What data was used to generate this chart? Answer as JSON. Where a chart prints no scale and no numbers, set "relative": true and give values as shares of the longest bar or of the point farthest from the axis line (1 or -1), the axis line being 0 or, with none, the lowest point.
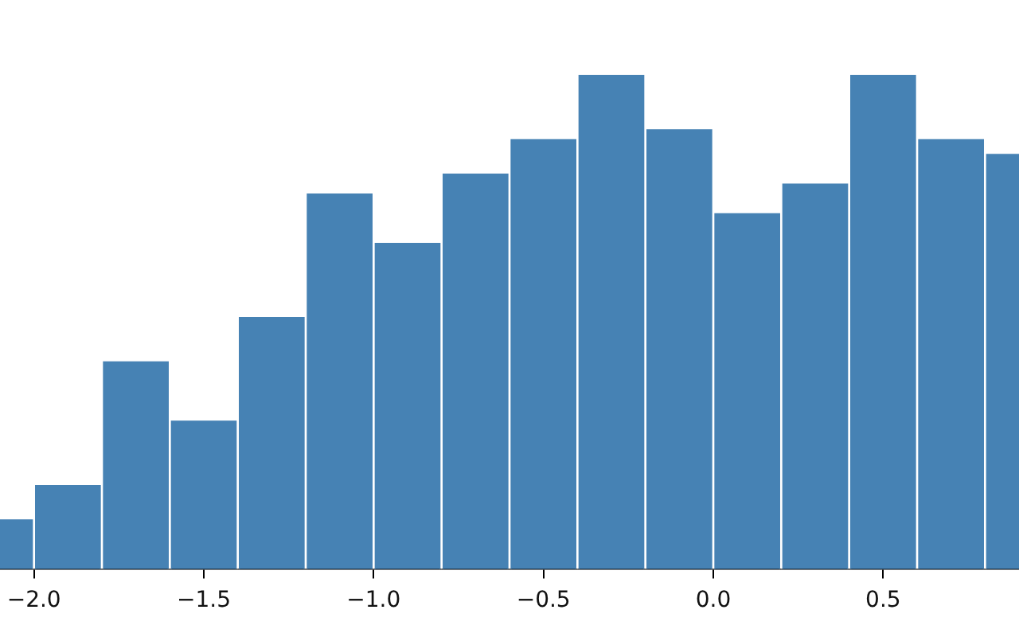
{
  "chart_data": {
    "type": "bar",
    "relative": true,
    "color": "#4682b4",
    "x": [
      -2.1,
      -1.9,
      -1.7,
      -1.5,
      -1.3,
      -1.1,
      -0.9,
      -0.7,
      -0.5,
      -0.3,
      -0.1,
      0.1,
      0.3,
      0.5,
      0.7,
      0.9
    ],
    "values": [
      0.1,
      0.17,
      0.42,
      0.3,
      0.51,
      0.76,
      0.66,
      0.8,
      0.87,
      1,
      0.89,
      0.72,
      0.78,
      1,
      0.87,
      0.84
    ],
    "xlim": [
      -2.1,
      0.9
    ],
    "xticks": [
      {
        "value": -2.0,
        "label": "−2.0"
      },
      {
        "value": -1.5,
        "label": "−1.5"
      },
      {
        "value": -1.0,
        "label": "−1.0"
      },
      {
        "value": -0.5,
        "label": "−0.5"
      },
      {
        "value": 0.0,
        "label": "0.0"
      },
      {
        "value": 0.5,
        "label": "0.5"
      }
    ],
    "grid": false,
    "legend": false
  }
}
